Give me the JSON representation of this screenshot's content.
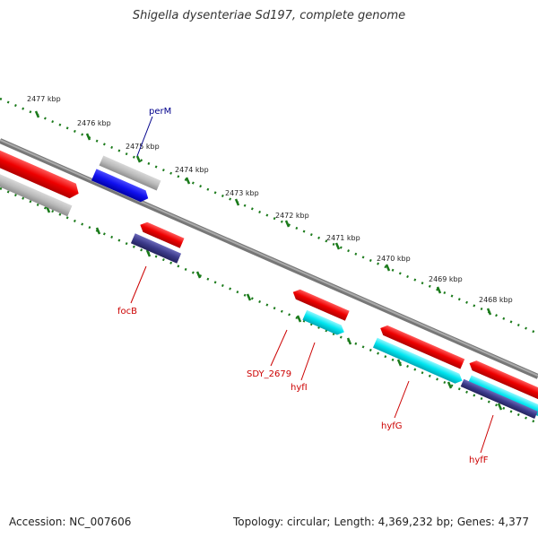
{
  "title": "Shigella dysenteriae Sd197, complete genome",
  "footer": {
    "accession": "Accession: NC_007606",
    "topology": "Topology: circular;",
    "length": "Length: 4,369,232 bp;",
    "genes": "Genes: 4,377"
  },
  "ruler": {
    "labels": [
      "2477 kbp",
      "2476 kbp",
      "2475 kbp",
      "2474 kbp",
      "2473 kbp",
      "2472 kbp",
      "2471 kbp",
      "2470 kbp",
      "2469 kbp",
      "2468 kbp"
    ]
  },
  "genes": [
    {
      "name": "perM",
      "color": "#00008b"
    },
    {
      "name": "focB",
      "color": "#cc0000"
    },
    {
      "name": "SDY_2679",
      "color": "#cc0000"
    },
    {
      "name": "hyfI",
      "color": "#cc0000"
    },
    {
      "name": "hyfG",
      "color": "#cc0000"
    },
    {
      "name": "hyfF",
      "color": "#cc0000"
    }
  ],
  "colors": {
    "forward_cds": "#ee0000",
    "reverse_cds": "#ee0000",
    "grey_feature": "#b0b0b0",
    "blue_feature": "#1010ee",
    "cyan_feature": "#00e5f0",
    "navy_feature": "#3c3a8a",
    "ruler_dots": "#1a7a1a",
    "backbone": "#888888"
  }
}
